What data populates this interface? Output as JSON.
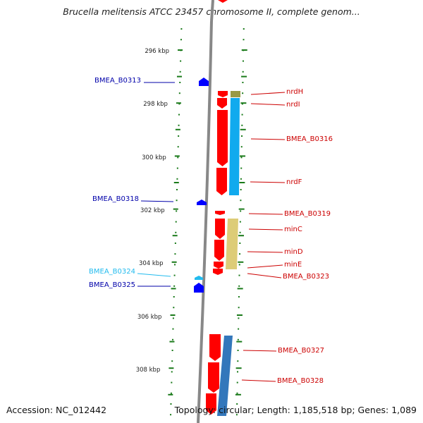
{
  "title": "Brucella melitensis ATCC 23457 chromosome II, complete genom...",
  "footer": {
    "accession": "Accession: NC_012442",
    "topology": "Topology: circular; Length: 1,185,518 bp; Genes: 1,089"
  },
  "colors": {
    "backbone": "#888888",
    "tick": "#1a7a1a",
    "forward_gene": "#ff0000",
    "reverse_gene": "#0000ff",
    "label_forward": "#cc0000",
    "label_reverse": "#0000aa",
    "label_highlight": "#22bbee",
    "ribbon_cyan": "#11aaee",
    "ribbon_olive": "#999944",
    "ribbon_khaki": "#ddcc77",
    "ribbon_steel": "#3377bb"
  },
  "ruler": {
    "unit": "kbp",
    "labels": [
      "296 kbp",
      "298 kbp",
      "300 kbp",
      "302 kbp",
      "304 kbp",
      "306 kbp",
      "308 kbp"
    ]
  },
  "genes": [
    {
      "label": "BMEA_B0313",
      "strand": "reverse"
    },
    {
      "label": "nrdH",
      "strand": "forward"
    },
    {
      "label": "nrdI",
      "strand": "forward"
    },
    {
      "label": "BMEA_B0316",
      "strand": "forward"
    },
    {
      "label": "nrdF",
      "strand": "forward"
    },
    {
      "label": "BMEA_B0318",
      "strand": "reverse"
    },
    {
      "label": "BMEA_B0319",
      "strand": "forward"
    },
    {
      "label": "minC",
      "strand": "forward"
    },
    {
      "label": "minD",
      "strand": "forward"
    },
    {
      "label": "minE",
      "strand": "forward"
    },
    {
      "label": "BMEA_B0323",
      "strand": "forward"
    },
    {
      "label": "BMEA_B0324",
      "strand": "reverse"
    },
    {
      "label": "BMEA_B0325",
      "strand": "reverse"
    },
    {
      "label": "BMEA_B0327",
      "strand": "forward"
    },
    {
      "label": "BMEA_B0328",
      "strand": "forward"
    }
  ]
}
